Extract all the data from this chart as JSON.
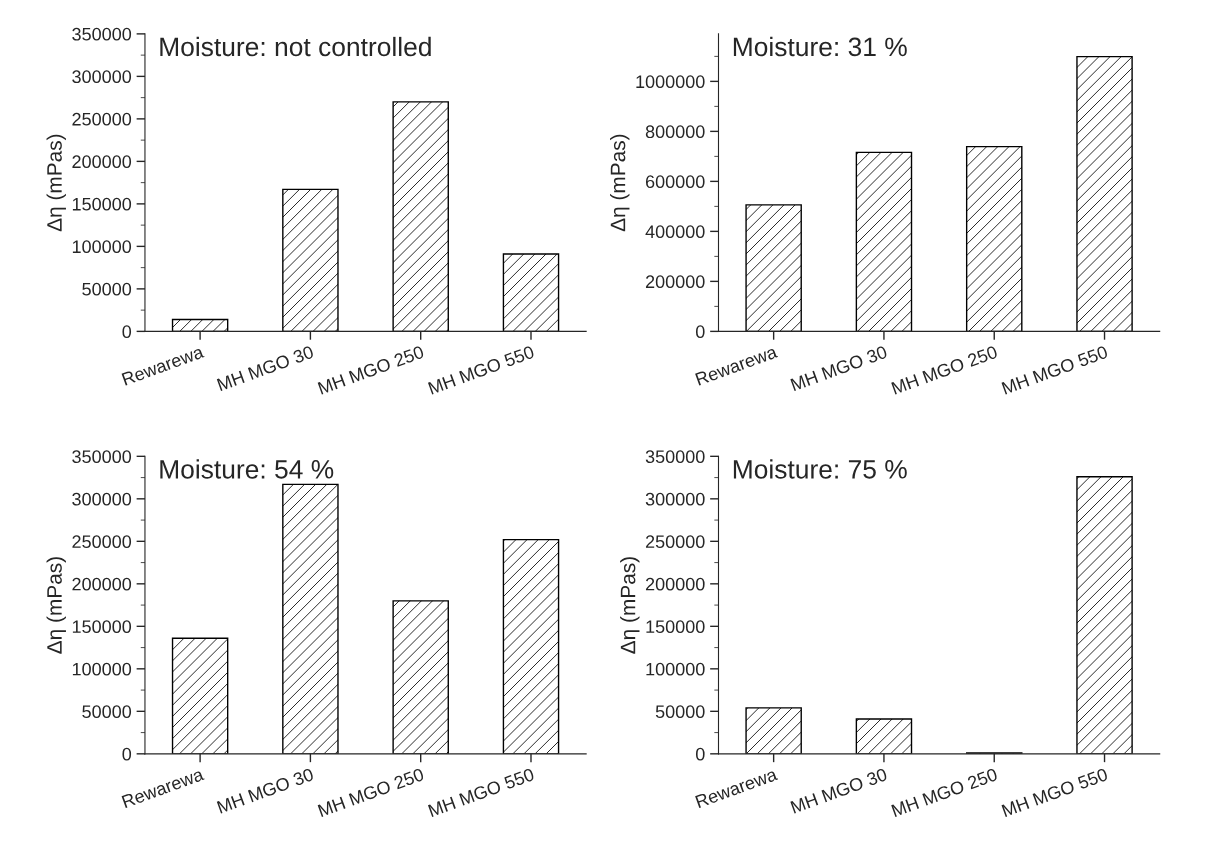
{
  "chart_data": [
    {
      "type": "bar",
      "title": "Moisture: not controlled",
      "ylabel": "Δη (mPas)",
      "categories": [
        "Rewarewa",
        "MH MGO 30",
        "MH MGO 250",
        "MH MGO 550"
      ],
      "values": [
        14000,
        167000,
        270000,
        91000
      ],
      "color": "#000000",
      "ylim": [
        0,
        350000
      ],
      "yticks": [
        0,
        50000,
        100000,
        150000,
        200000,
        250000,
        300000,
        350000
      ],
      "grid": false
    },
    {
      "type": "bar",
      "title": "Moisture: 31 %",
      "ylabel": "Δη (mPas)",
      "categories": [
        "Rewarewa",
        "MH MGO 30",
        "MH MGO 250",
        "MH MGO 550"
      ],
      "values": [
        506000,
        716000,
        739000,
        1099000
      ],
      "color": "#000000",
      "ylim": [
        0,
        1190000
      ],
      "yticks": [
        0,
        200000,
        400000,
        600000,
        800000,
        1000000
      ],
      "grid": false
    },
    {
      "type": "bar",
      "title": "Moisture: 54 %",
      "ylabel": "Δη (mPas)",
      "categories": [
        "Rewarewa",
        "MH MGO 30",
        "MH MGO 250",
        "MH MGO 550"
      ],
      "values": [
        136000,
        317000,
        180000,
        252000
      ],
      "color": "#000000",
      "ylim": [
        0,
        350000
      ],
      "yticks": [
        0,
        50000,
        100000,
        150000,
        200000,
        250000,
        300000,
        350000
      ],
      "grid": false
    },
    {
      "type": "bar",
      "title": "Moisture: 75 %",
      "ylabel": "Δη (mPas)",
      "categories": [
        "Rewarewa",
        "MH MGO 30",
        "MH MGO 250",
        "MH MGO 550"
      ],
      "values": [
        54000,
        41000,
        1000,
        326000
      ],
      "color": "#000000",
      "ylim": [
        0,
        350000
      ],
      "yticks": [
        0,
        50000,
        100000,
        150000,
        200000,
        250000,
        300000,
        350000
      ],
      "grid": false
    }
  ]
}
